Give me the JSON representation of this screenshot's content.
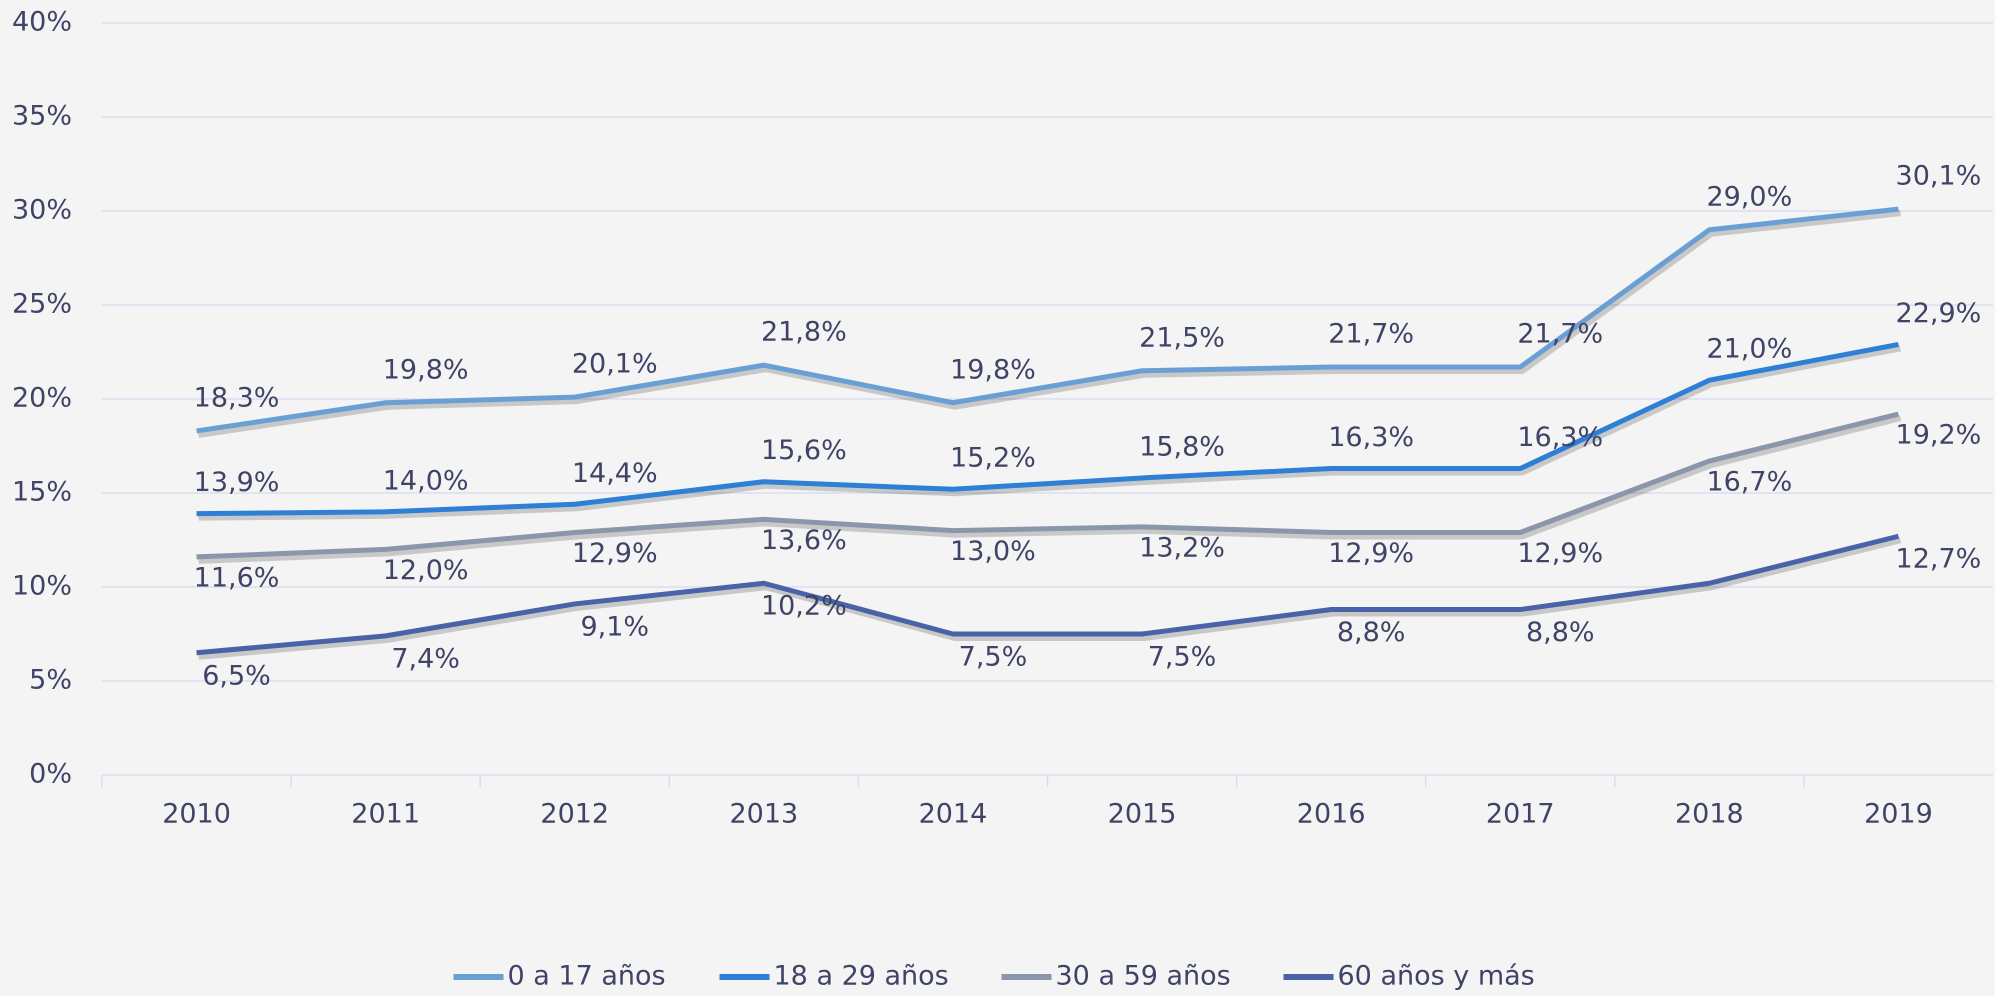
{
  "chart_data": {
    "type": "line",
    "categories": [
      "2010",
      "2011",
      "2012",
      "2013",
      "2014",
      "2015",
      "2016",
      "2017",
      "2018",
      "2019"
    ],
    "series": [
      {
        "name": "0 a 17 años",
        "color": "#6a9fd4",
        "values": [
          18.3,
          19.8,
          20.1,
          21.8,
          19.8,
          21.5,
          21.7,
          21.7,
          29.0,
          30.1
        ],
        "value_labels": [
          "18,3%",
          "19,8%",
          "20,1%",
          "21,8%",
          "19,8%",
          "21,5%",
          "21,7%",
          "21,7%",
          "29,0%",
          "30,1%"
        ]
      },
      {
        "name": "18 a 29 años",
        "color": "#2e7fd6",
        "values": [
          13.9,
          14.0,
          14.4,
          15.6,
          15.2,
          15.8,
          16.3,
          16.3,
          21.0,
          22.9
        ],
        "value_labels": [
          "13,9%",
          "14,0%",
          "14,4%",
          "15,6%",
          "15,2%",
          "15,8%",
          "16,3%",
          "16,3%",
          "21,0%",
          "22,9%"
        ]
      },
      {
        "name": "30 a 59 años",
        "color": "#8a96aa",
        "values": [
          11.6,
          12.0,
          12.9,
          13.6,
          13.0,
          13.2,
          12.9,
          12.9,
          16.7,
          19.2
        ],
        "value_labels": [
          "11,6%",
          "12,0%",
          "12,9%",
          "13,6%",
          "13,0%",
          "13,2%",
          "12,9%",
          "12,9%",
          "16,7%",
          "19,2%"
        ]
      },
      {
        "name": "60 años y más",
        "color": "#4a62a8",
        "values": [
          6.5,
          7.4,
          9.1,
          10.2,
          7.5,
          7.5,
          8.8,
          8.8,
          10.2,
          12.7
        ],
        "value_labels": [
          "6,5%",
          "7,4%",
          "9,1%",
          "10,2%",
          "7,5%",
          "7,5%",
          "8,8%",
          "8,8%",
          null,
          "12,7%"
        ]
      }
    ],
    "ylim": [
      0,
      40
    ],
    "yticks": [
      {
        "value": 0,
        "label": "0%"
      },
      {
        "value": 5,
        "label": "5%"
      },
      {
        "value": 10,
        "label": "10%"
      },
      {
        "value": 15,
        "label": "15%"
      },
      {
        "value": 20,
        "label": "20%"
      },
      {
        "value": 25,
        "label": "25%"
      },
      {
        "value": 30,
        "label": "30%"
      },
      {
        "value": 35,
        "label": "35%"
      },
      {
        "value": 40,
        "label": "40%"
      }
    ],
    "grid": true,
    "legend": "bottom"
  }
}
